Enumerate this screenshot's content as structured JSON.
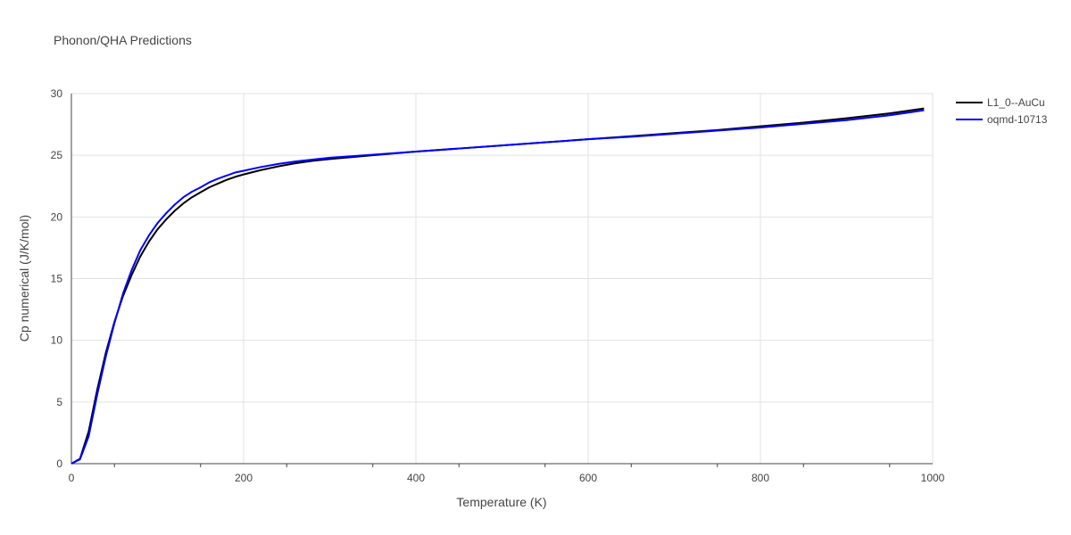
{
  "chart_data": {
    "type": "line",
    "title": "Phonon/QHA Predictions",
    "xlabel": "Temperature (K)",
    "ylabel": "Cp numerical (J/K/mol)",
    "xlim": [
      0,
      1000
    ],
    "ylim": [
      0,
      30
    ],
    "xticks": [
      0,
      200,
      400,
      600,
      800,
      1000
    ],
    "yticks": [
      0,
      5,
      10,
      15,
      20,
      25,
      30
    ],
    "grid": true,
    "legend_position": "top-right",
    "series": [
      {
        "name": "L1_0--AuCu",
        "color": "#000000",
        "x": [
          0,
          10,
          20,
          30,
          40,
          50,
          60,
          70,
          80,
          90,
          100,
          110,
          120,
          130,
          140,
          150,
          160,
          170,
          180,
          190,
          200,
          220,
          240,
          260,
          280,
          300,
          350,
          400,
          450,
          500,
          550,
          600,
          650,
          700,
          750,
          800,
          850,
          900,
          950,
          990
        ],
        "y": [
          0,
          0.4,
          2.6,
          6.0,
          9.0,
          11.5,
          13.6,
          15.3,
          16.8,
          18.0,
          19.0,
          19.8,
          20.5,
          21.1,
          21.6,
          22.0,
          22.4,
          22.7,
          23.0,
          23.25,
          23.45,
          23.8,
          24.1,
          24.35,
          24.55,
          24.7,
          25.0,
          25.3,
          25.55,
          25.8,
          26.05,
          26.3,
          26.55,
          26.8,
          27.05,
          27.35,
          27.65,
          28.0,
          28.4,
          28.8
        ]
      },
      {
        "name": "oqmd-10713",
        "color": "#0000ff",
        "x": [
          0,
          10,
          20,
          30,
          40,
          50,
          60,
          70,
          80,
          90,
          100,
          110,
          120,
          130,
          140,
          150,
          160,
          170,
          180,
          190,
          200,
          220,
          240,
          260,
          280,
          300,
          350,
          400,
          450,
          500,
          550,
          600,
          650,
          700,
          750,
          800,
          850,
          900,
          950,
          990
        ],
        "y": [
          0,
          0.35,
          2.2,
          5.6,
          8.7,
          11.4,
          13.8,
          15.7,
          17.3,
          18.5,
          19.5,
          20.3,
          21.0,
          21.6,
          22.05,
          22.4,
          22.8,
          23.1,
          23.35,
          23.6,
          23.75,
          24.05,
          24.3,
          24.5,
          24.65,
          24.8,
          25.05,
          25.3,
          25.55,
          25.8,
          26.05,
          26.3,
          26.5,
          26.75,
          27.0,
          27.25,
          27.55,
          27.85,
          28.25,
          28.65
        ]
      }
    ]
  }
}
